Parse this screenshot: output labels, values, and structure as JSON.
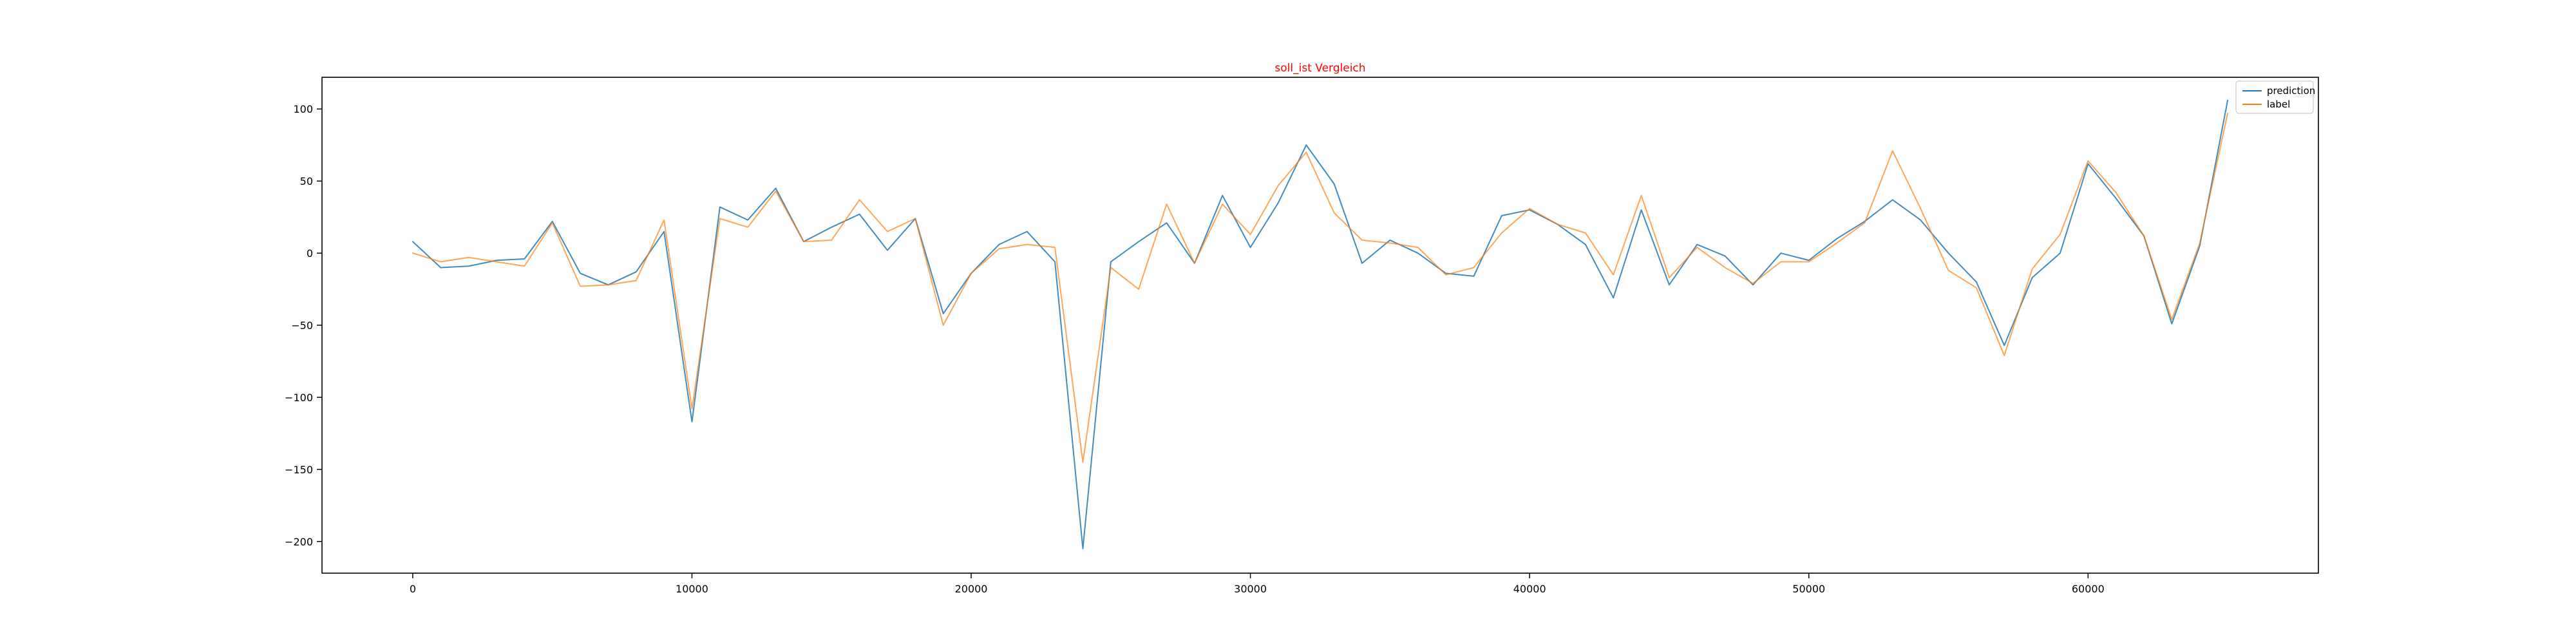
{
  "chart_data": {
    "type": "line",
    "title": "soll_ist Vergleich",
    "title_color": "#ff0000",
    "xlabel": "",
    "ylabel": "",
    "xlim": [
      -3250,
      68250
    ],
    "ylim": [
      -222,
      122
    ],
    "xticks": [
      0,
      10000,
      20000,
      30000,
      40000,
      50000,
      60000
    ],
    "yticks": [
      -200,
      -150,
      -100,
      -50,
      0,
      50,
      100
    ],
    "grid": false,
    "legend_position": "top-right",
    "x": [
      0,
      1000,
      2000,
      3000,
      4000,
      5000,
      6000,
      7000,
      8000,
      9000,
      10000,
      11000,
      12000,
      13000,
      14000,
      15000,
      16000,
      17000,
      18000,
      19000,
      20000,
      21000,
      22000,
      23000,
      24000,
      25000,
      26000,
      27000,
      28000,
      29000,
      30000,
      31000,
      32000,
      33000,
      34000,
      35000,
      36000,
      37000,
      38000,
      39000,
      40000,
      41000,
      42000,
      43000,
      44000,
      45000,
      46000,
      47000,
      48000,
      49000,
      50000,
      51000,
      52000,
      53000,
      54000,
      55000,
      56000,
      57000,
      58000,
      59000,
      60000,
      61000,
      62000,
      63000,
      64000,
      65000
    ],
    "series": [
      {
        "name": "prediction",
        "color": "#1f77b4",
        "values": [
          8,
          -10,
          -9,
          -5,
          -4,
          22,
          -14,
          -22,
          -13,
          15,
          -117,
          32,
          23,
          45,
          8,
          18,
          27,
          2,
          24,
          -42,
          -14,
          6,
          15,
          -6,
          -205,
          -6,
          8,
          21,
          -7,
          40,
          4,
          35,
          75,
          48,
          -7,
          9,
          0,
          -14,
          -16,
          26,
          30,
          20,
          6,
          -31,
          30,
          -22,
          6,
          -2,
          -22,
          0,
          -5,
          10,
          22,
          37,
          23,
          0,
          -20,
          -64,
          -17,
          0,
          62,
          38,
          12,
          -49,
          5,
          106
        ]
      },
      {
        "name": "label",
        "color": "#ff7f0e",
        "values": [
          0,
          -6,
          -3,
          -6,
          -9,
          21,
          -23,
          -22,
          -19,
          23,
          -108,
          24,
          18,
          43,
          8,
          9,
          37,
          15,
          24,
          -50,
          -14,
          3,
          6,
          4,
          -145,
          -10,
          -25,
          34,
          -7,
          34,
          13,
          47,
          70,
          28,
          9,
          7,
          4,
          -15,
          -10,
          14,
          31,
          20,
          14,
          -15,
          40,
          -17,
          4,
          -10,
          -21,
          -6,
          -6,
          7,
          21,
          71,
          31,
          -12,
          -24,
          -71,
          -11,
          13,
          64,
          42,
          12,
          -46,
          7,
          97
        ]
      }
    ]
  }
}
